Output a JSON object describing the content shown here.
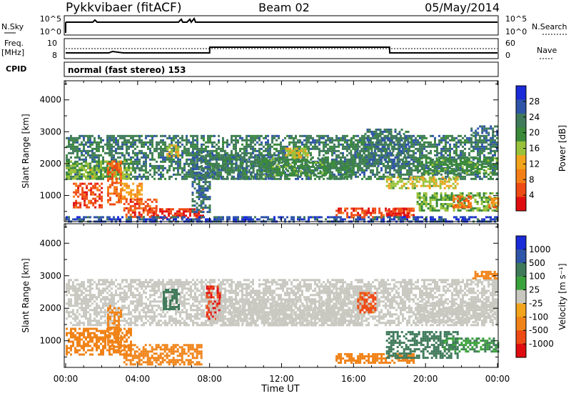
{
  "header": {
    "title": "Pykkvibaer (fitACF)",
    "beam": "Beam 02",
    "date": "05/May/2014"
  },
  "top_panels": {
    "nsky_label": "N.Sky",
    "nsky_ticks": [
      "10^5",
      "10^0"
    ],
    "nsearch_label": "N.Search",
    "nsearch_ticks": [
      "10^5",
      "10^0"
    ],
    "freq_label_1": "Freq.",
    "freq_label_2": "[MHz]",
    "freq_ticks": [
      "10",
      "8"
    ],
    "nave_label": "Nave",
    "nave_ticks": [
      "60",
      "0"
    ],
    "cpid_label": "CPID",
    "cpid_text": "normal (fast stereo) 153"
  },
  "colors": {
    "power_scale": [
      "#1a2bd8",
      "#2f55a8",
      "#3f7a5a",
      "#3a8a3a",
      "#99c23a",
      "#f2a41c",
      "#f57f17",
      "#ee4a14",
      "#e00d10"
    ],
    "velocity_scale": [
      "#1a2bd8",
      "#2f55a8",
      "#3f7a5a",
      "#3aa23a",
      "#c8c8c0",
      "#f2a41c",
      "#f08318",
      "#ee4a14",
      "#e00d10"
    ],
    "velocity_gray": "#c8c8c0"
  },
  "chart_data": [
    {
      "type": "heatmap",
      "panel": "power",
      "xlabel": "Time UT",
      "ylabel": "Slant Range [km]",
      "x_ticks": [
        "00:00",
        "04:00",
        "08:00",
        "12:00",
        "16:00",
        "20:00",
        "00:00"
      ],
      "xlim_hours": [
        0,
        24
      ],
      "ylim": [
        180,
        4600
      ],
      "y_ticks": [
        1000,
        2000,
        3000,
        4000
      ],
      "colorbar_label": "Power [dB]",
      "colorbar_ticks": [
        "28",
        "24",
        "20",
        "16",
        "12",
        "8",
        "4"
      ],
      "colorbar_range": [
        0,
        32
      ],
      "regions": [
        {
          "t": [
            0.0,
            24.0
          ],
          "r": [
            1500,
            2900
          ],
          "v": 9
        },
        {
          "t": [
            0.0,
            3.6
          ],
          "r": [
            1500,
            2100
          ],
          "v": 15
        },
        {
          "t": [
            0.4,
            2.0
          ],
          "r": [
            600,
            1400
          ],
          "v": 27
        },
        {
          "t": [
            2.3,
            3.1
          ],
          "r": [
            700,
            2100
          ],
          "v": 25
        },
        {
          "t": [
            3.1,
            4.2
          ],
          "r": [
            900,
            1400
          ],
          "v": 21
        },
        {
          "t": [
            3.2,
            5.0
          ],
          "r": [
            350,
            900
          ],
          "v": 26
        },
        {
          "t": [
            4.6,
            7.6
          ],
          "r": [
            300,
            600
          ],
          "v": 29
        },
        {
          "t": [
            5.6,
            6.2
          ],
          "r": [
            2200,
            2600
          ],
          "v": 19
        },
        {
          "t": [
            7.0,
            8.0
          ],
          "r": [
            500,
            2400
          ],
          "v": 8
        },
        {
          "t": [
            8.0,
            11.5
          ],
          "r": [
            1500,
            2300
          ],
          "v": 9
        },
        {
          "t": [
            11.0,
            14.5
          ],
          "r": [
            1600,
            2200
          ],
          "v": 12
        },
        {
          "t": [
            12.2,
            13.4
          ],
          "r": [
            2200,
            2500
          ],
          "v": 17
        },
        {
          "t": [
            14.5,
            16.0
          ],
          "r": [
            1500,
            2100
          ],
          "v": 11
        },
        {
          "t": [
            15.8,
            16.6
          ],
          "r": [
            2000,
            2700
          ],
          "v": 10
        },
        {
          "t": [
            15.0,
            19.3
          ],
          "r": [
            330,
            620
          ],
          "v": 27
        },
        {
          "t": [
            17.8,
            19.0
          ],
          "r": [
            380,
            600
          ],
          "v": 30
        },
        {
          "t": [
            16.6,
            19.0
          ],
          "r": [
            1900,
            3100
          ],
          "v": 8
        },
        {
          "t": [
            17.8,
            21.8
          ],
          "r": [
            1200,
            1600
          ],
          "v": 17
        },
        {
          "t": [
            19.5,
            24.0
          ],
          "r": [
            1700,
            2200
          ],
          "v": 12
        },
        {
          "t": [
            19.5,
            24.0
          ],
          "r": [
            500,
            1100
          ],
          "v": 14
        },
        {
          "t": [
            21.5,
            22.5
          ],
          "r": [
            600,
            1000
          ],
          "v": 24
        },
        {
          "t": [
            23.5,
            24.0
          ],
          "r": [
            600,
            1000
          ],
          "v": 23
        },
        {
          "t": [
            0.0,
            24.0
          ],
          "r": [
            180,
            350
          ],
          "v": 5
        },
        {
          "t": [
            22.5,
            24.0
          ],
          "r": [
            2900,
            3200
          ],
          "v": 7
        }
      ]
    },
    {
      "type": "heatmap",
      "panel": "velocity",
      "xlabel": "Time UT",
      "ylabel": "Slant Range [km]",
      "x_ticks": [
        "00:00",
        "04:00",
        "08:00",
        "12:00",
        "16:00",
        "20:00",
        "00:00"
      ],
      "xlim_hours": [
        0,
        24
      ],
      "ylim": [
        180,
        4600
      ],
      "y_ticks": [
        1000,
        2000,
        3000,
        4000
      ],
      "colorbar_label": "Velocity [m s⁻¹]",
      "colorbar_ticks": [
        "1000",
        "500",
        "100",
        "25",
        "-25",
        "-100",
        "-500",
        "-1000"
      ],
      "regions": [
        {
          "t": [
            0.0,
            24.0
          ],
          "r": [
            1500,
            2900
          ],
          "v": 0
        },
        {
          "t": [
            0.0,
            3.6
          ],
          "r": [
            600,
            1400
          ],
          "v": -200
        },
        {
          "t": [
            2.3,
            3.1
          ],
          "r": [
            700,
            2100
          ],
          "v": -150
        },
        {
          "t": [
            3.2,
            7.6
          ],
          "r": [
            300,
            900
          ],
          "v": -180
        },
        {
          "t": [
            5.4,
            6.3
          ],
          "r": [
            2000,
            2600
          ],
          "v": 150
        },
        {
          "t": [
            7.8,
            8.6
          ],
          "r": [
            1700,
            2700
          ],
          "v": -700
        },
        {
          "t": [
            8.0,
            14.5
          ],
          "r": [
            1500,
            2300
          ],
          "v": 0
        },
        {
          "t": [
            14.5,
            16.5
          ],
          "r": [
            1500,
            2700
          ],
          "v": 5
        },
        {
          "t": [
            15.0,
            19.3
          ],
          "r": [
            330,
            620
          ],
          "v": -120
        },
        {
          "t": [
            16.2,
            17.2
          ],
          "r": [
            1900,
            2500
          ],
          "v": -400
        },
        {
          "t": [
            17.8,
            21.8
          ],
          "r": [
            500,
            1300
          ],
          "v": 200
        },
        {
          "t": [
            19.5,
            24.0
          ],
          "r": [
            1600,
            2200
          ],
          "v": 0
        },
        {
          "t": [
            21.0,
            24.0
          ],
          "r": [
            700,
            1100
          ],
          "v": 60
        },
        {
          "t": [
            22.6,
            24.0
          ],
          "r": [
            2950,
            3150
          ],
          "v": -110
        }
      ]
    },
    {
      "type": "line",
      "panel": "freq",
      "x_hours": [
        0,
        2.4,
        2.6,
        3.2,
        8.0,
        8.01,
        18.0,
        18.01,
        24
      ],
      "y_nave": [
        15,
        15,
        20,
        15,
        15,
        35,
        35,
        15,
        15
      ]
    }
  ]
}
